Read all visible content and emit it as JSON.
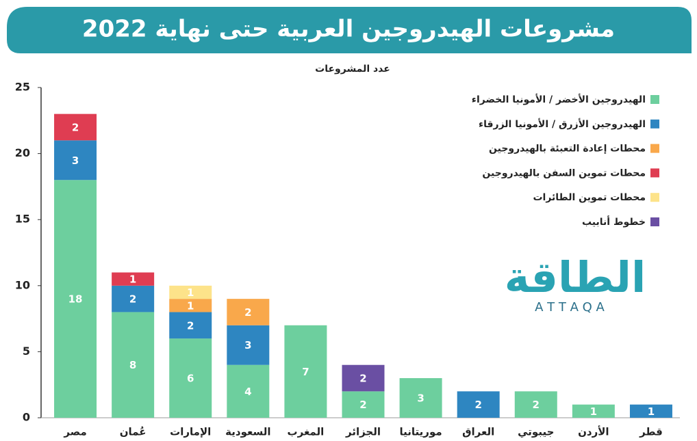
{
  "chart_data": {
    "type": "stacked-bar",
    "title": "مشروعات الهيدروجين العربية حتى نهاية 2022",
    "y_label": "عدد المشروعات",
    "categories": [
      "مصر",
      "عُمان",
      "الإمارات",
      "السعودية",
      "المغرب",
      "الجزائر",
      "موريتانيا",
      "العراق",
      "جيبوتي",
      "الأردن",
      "قطر"
    ],
    "series": [
      {
        "name": "الهيدروجين الأخضر / الأمونيا الخضراء",
        "color": "#6dcf9e",
        "values": [
          18,
          8,
          6,
          4,
          7,
          2,
          3,
          null,
          2,
          1,
          null
        ]
      },
      {
        "name": "الهيدروجين الأزرق / الأمونيا الزرقاء",
        "color": "#2e86c1",
        "values": [
          3,
          2,
          2,
          3,
          null,
          null,
          null,
          2,
          null,
          null,
          1
        ]
      },
      {
        "name": "محطات إعادة التعبئة بالهيدروجين",
        "color": "#f9a84b",
        "values": [
          null,
          null,
          1,
          2,
          null,
          null,
          null,
          null,
          null,
          null,
          null
        ]
      },
      {
        "name": "محطات تموين السفن بالهيدروجين",
        "color": "#df3d52",
        "values": [
          2,
          1,
          null,
          null,
          null,
          null,
          null,
          null,
          null,
          null,
          null
        ]
      },
      {
        "name": "محطات تموين الطائرات",
        "color": "#fde38a",
        "values": [
          null,
          null,
          1,
          null,
          null,
          null,
          null,
          null,
          null,
          null,
          null
        ]
      },
      {
        "name": "خطوط أنابيب",
        "color": "#6a4fa3",
        "values": [
          null,
          null,
          null,
          null,
          null,
          2,
          null,
          null,
          null,
          null,
          null
        ]
      }
    ],
    "ylim": [
      0,
      25
    ],
    "yticks": [
      0,
      5,
      10,
      15,
      20,
      25
    ],
    "grid": false,
    "legend": "top-right"
  },
  "logo": {
    "arabic": "الطاقة",
    "latin": "A T T A Q A"
  }
}
